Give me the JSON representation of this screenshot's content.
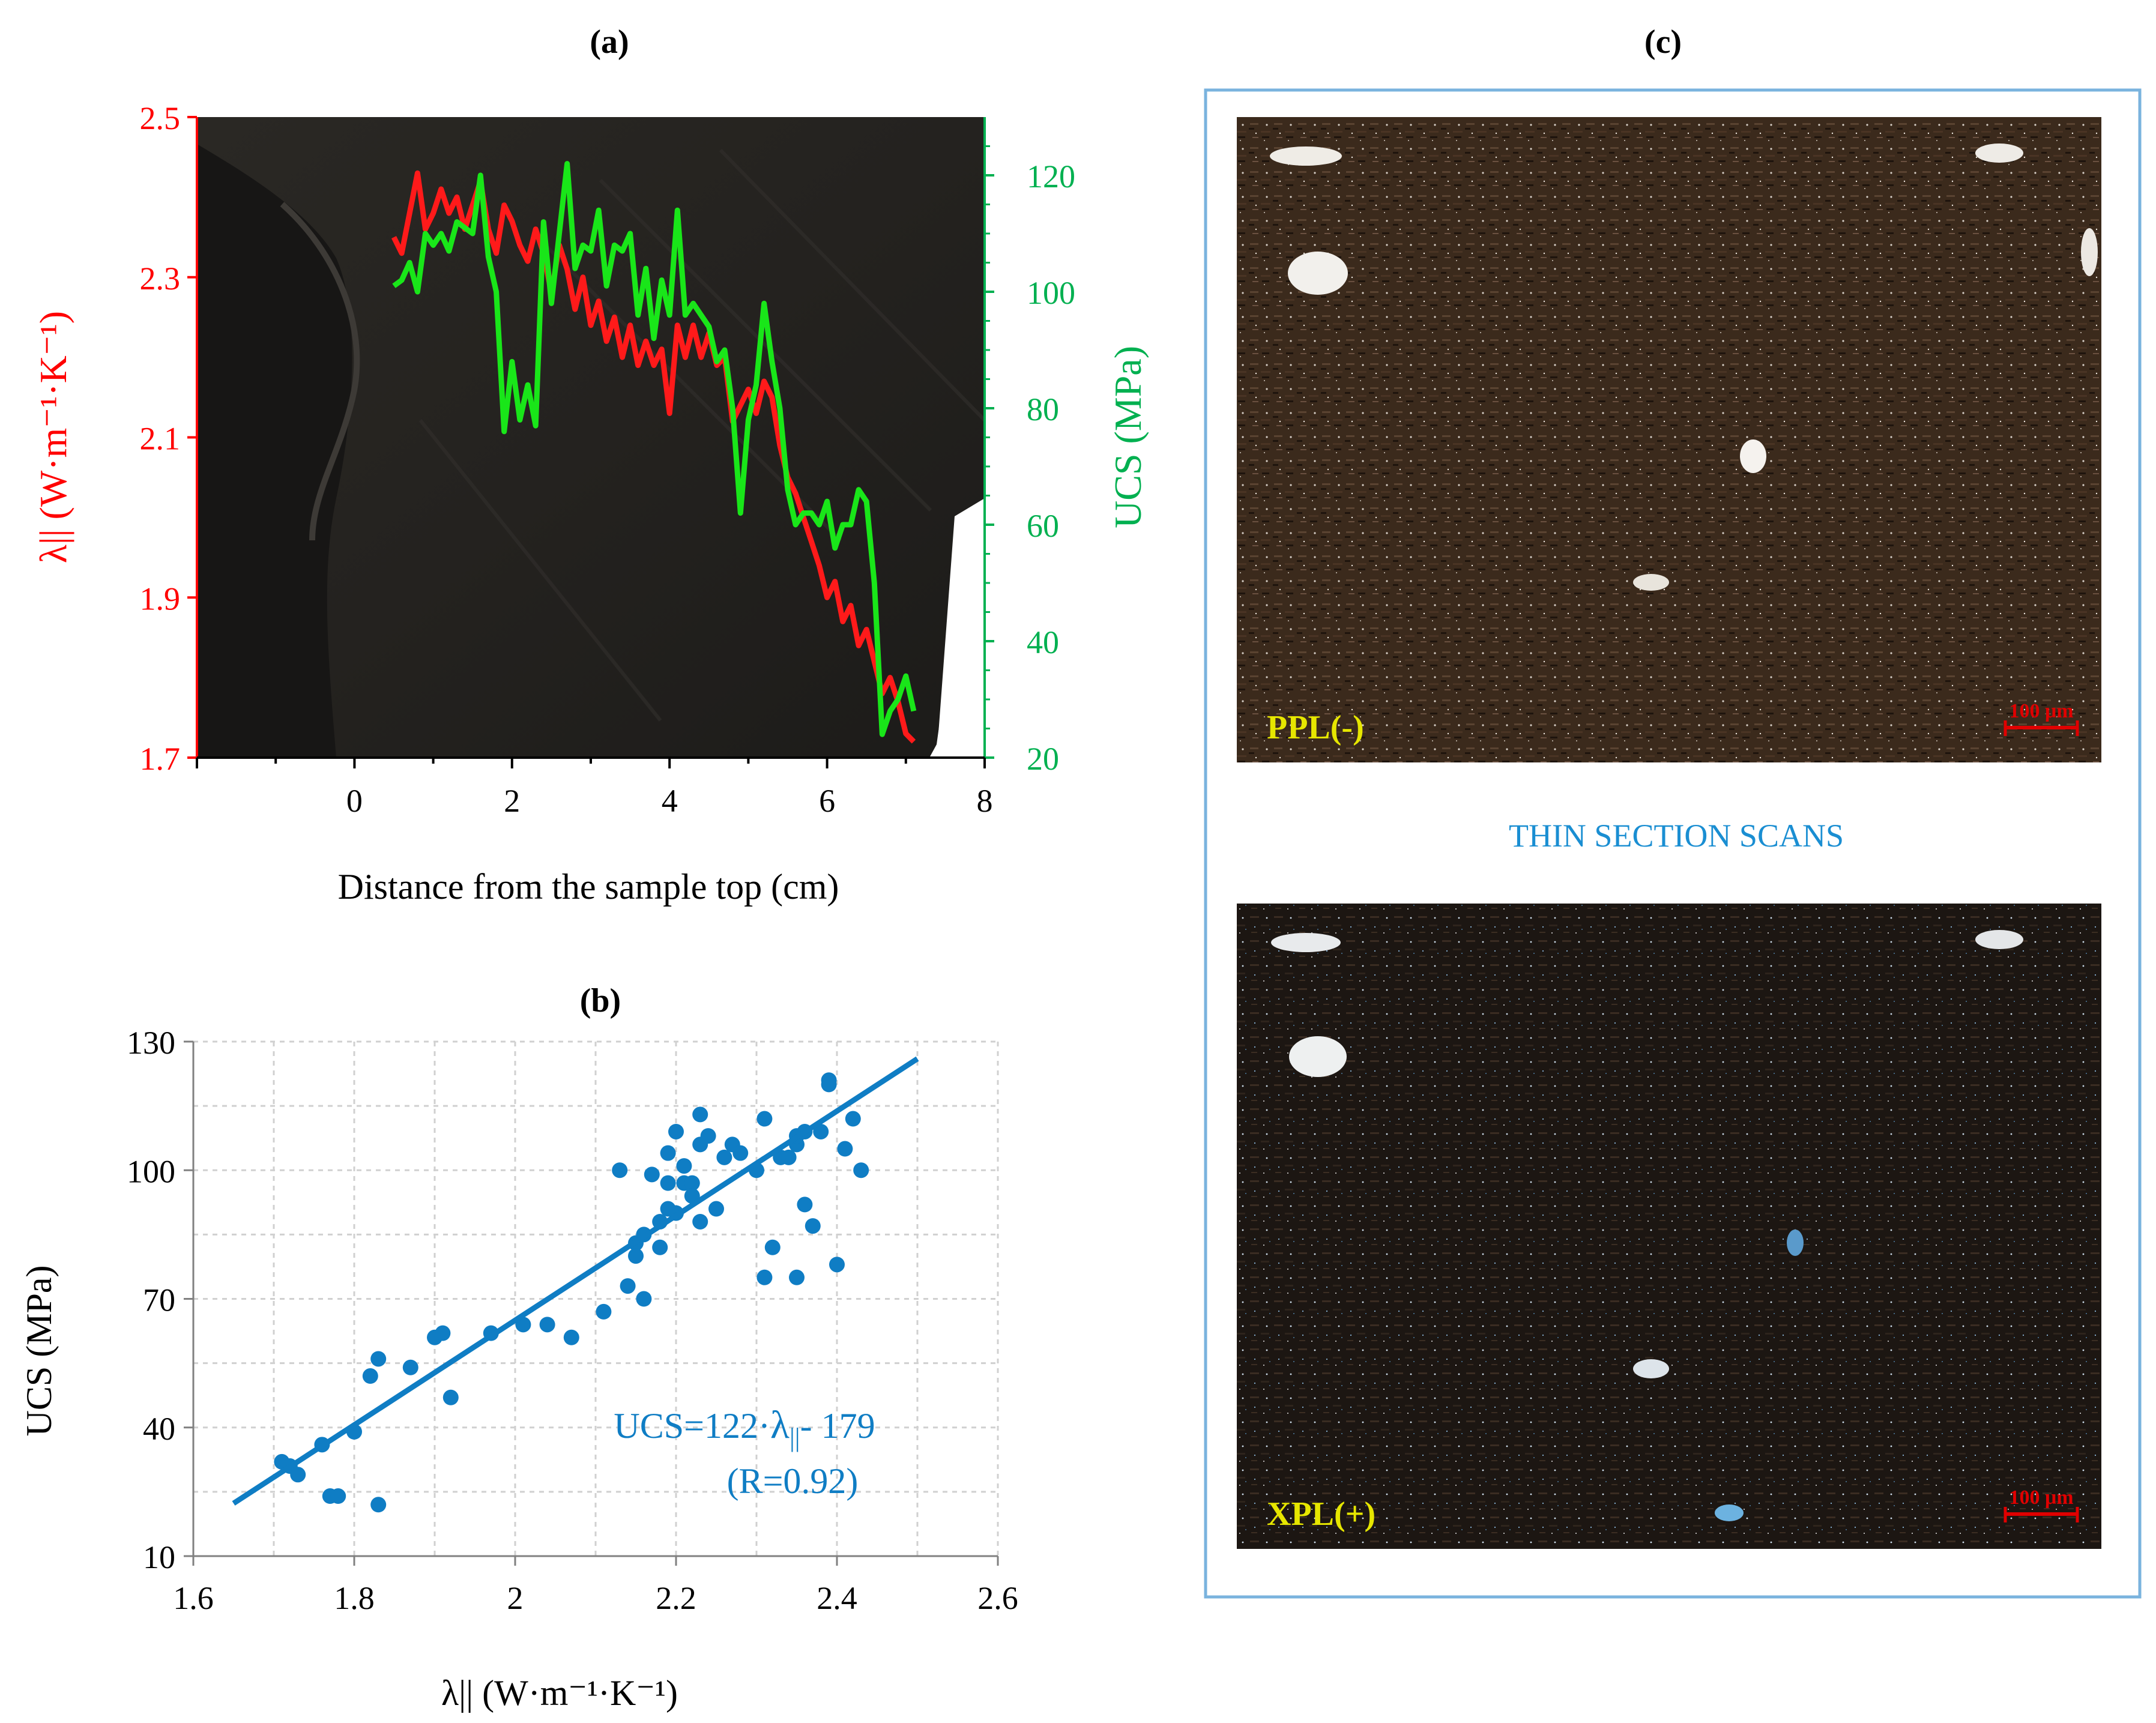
{
  "panel_a": {
    "label": "(a)",
    "chart_data": {
      "type": "line",
      "title": "(a)",
      "xlabel": "Distance from the sample top (cm)",
      "ylabel_left": "λ|| (W·m⁻¹·K⁻¹)",
      "ylabel_right": "UCS (MPa)",
      "xlim": [
        -2,
        8
      ],
      "ylim_left": [
        1.7,
        2.5
      ],
      "ylim_right": [
        20,
        130
      ],
      "x_ticks": [
        "0",
        "2",
        "4",
        "6",
        "8"
      ],
      "x_tick_values": [
        0,
        2,
        4,
        6,
        8
      ],
      "y_left_ticks": [
        "1.7",
        "1.9",
        "2.1",
        "2.3",
        "2.5"
      ],
      "y_left_tick_values": [
        1.7,
        1.9,
        2.1,
        2.3,
        2.5
      ],
      "y_right_ticks": [
        "20",
        "40",
        "60",
        "80",
        "100",
        "120"
      ],
      "y_right_tick_values": [
        20,
        40,
        60,
        80,
        100,
        120
      ],
      "colors": {
        "lambda": "#ff1a1a",
        "ucs": "#19e619",
        "right_axis": "#00b050",
        "left_axis": "#ff0000"
      },
      "series": [
        {
          "name": "λ||",
          "axis": "left",
          "x": [
            0.5,
            0.6,
            0.7,
            0.8,
            0.9,
            1.0,
            1.1,
            1.2,
            1.3,
            1.4,
            1.5,
            1.6,
            1.7,
            1.8,
            1.9,
            2.0,
            2.1,
            2.2,
            2.3,
            2.4,
            2.5,
            2.6,
            2.7,
            2.8,
            2.9,
            3.0,
            3.1,
            3.2,
            3.3,
            3.4,
            3.5,
            3.6,
            3.7,
            3.8,
            3.9,
            4.0,
            4.1,
            4.2,
            4.3,
            4.4,
            4.5,
            4.6,
            4.7,
            4.8,
            4.9,
            5.0,
            5.1,
            5.2,
            5.3,
            5.4,
            5.5,
            5.6,
            5.7,
            5.8,
            5.9,
            6.0,
            6.1,
            6.2,
            6.3,
            6.4,
            6.5,
            6.6,
            6.7,
            6.8,
            6.9,
            7.0,
            7.1
          ],
          "y": [
            2.35,
            2.33,
            2.38,
            2.43,
            2.36,
            2.38,
            2.41,
            2.38,
            2.4,
            2.36,
            2.39,
            2.42,
            2.36,
            2.33,
            2.39,
            2.37,
            2.34,
            2.32,
            2.36,
            2.33,
            2.28,
            2.34,
            2.31,
            2.26,
            2.3,
            2.24,
            2.27,
            2.22,
            2.25,
            2.2,
            2.24,
            2.19,
            2.22,
            2.19,
            2.21,
            2.13,
            2.24,
            2.2,
            2.24,
            2.2,
            2.23,
            2.19,
            2.2,
            2.12,
            2.14,
            2.16,
            2.13,
            2.17,
            2.15,
            2.09,
            2.05,
            2.03,
            2.0,
            1.97,
            1.94,
            1.9,
            1.92,
            1.87,
            1.89,
            1.84,
            1.86,
            1.82,
            1.78,
            1.8,
            1.77,
            1.73,
            1.72
          ]
        },
        {
          "name": "UCS",
          "axis": "right",
          "x": [
            0.5,
            0.6,
            0.7,
            0.8,
            0.9,
            1.0,
            1.1,
            1.2,
            1.3,
            1.4,
            1.5,
            1.6,
            1.7,
            1.8,
            1.9,
            2.0,
            2.1,
            2.2,
            2.3,
            2.4,
            2.5,
            2.6,
            2.7,
            2.8,
            2.9,
            3.0,
            3.1,
            3.2,
            3.3,
            3.4,
            3.5,
            3.6,
            3.7,
            3.8,
            3.9,
            4.0,
            4.1,
            4.2,
            4.3,
            4.4,
            4.5,
            4.6,
            4.7,
            4.8,
            4.9,
            5.0,
            5.1,
            5.2,
            5.3,
            5.4,
            5.5,
            5.6,
            5.7,
            5.8,
            5.9,
            6.0,
            6.1,
            6.2,
            6.3,
            6.4,
            6.5,
            6.6,
            6.7,
            6.8,
            6.9,
            7.0,
            7.1
          ],
          "y": [
            101,
            102,
            105,
            100,
            110,
            108,
            110,
            107,
            112,
            111,
            110,
            120,
            106,
            100,
            76,
            88,
            78,
            84,
            77,
            112,
            98,
            110,
            122,
            104,
            108,
            107,
            114,
            101,
            108,
            107,
            110,
            96,
            104,
            92,
            102,
            96,
            114,
            96,
            98,
            96,
            94,
            88,
            90,
            80,
            62,
            78,
            84,
            98,
            88,
            80,
            66,
            60,
            62,
            62,
            60,
            64,
            56,
            60,
            60,
            66,
            64,
            50,
            24,
            28,
            30,
            34,
            28
          ]
        }
      ]
    }
  },
  "panel_b": {
    "label": "(b)",
    "equation_prefix": "UCS=122·",
    "equation_symbol": "λ",
    "equation_subscript": "||",
    "equation_suffix": "- 179",
    "r_value": "(R=0.92)",
    "chart_data": {
      "type": "scatter",
      "title": "(b)",
      "xlabel": "λ|| (W·m⁻¹·K⁻¹)",
      "ylabel": "UCS (MPa)",
      "xlim": [
        1.6,
        2.6
      ],
      "ylim": [
        10,
        130
      ],
      "x_ticks": [
        "1.6",
        "1.8",
        "2",
        "2.2",
        "2.4",
        "2.6"
      ],
      "x_tick_values": [
        1.6,
        1.8,
        2.0,
        2.2,
        2.4,
        2.6
      ],
      "y_ticks": [
        "10",
        "40",
        "70",
        "100",
        "130"
      ],
      "y_tick_values": [
        10,
        40,
        70,
        100,
        130
      ],
      "grid": true,
      "color": "#0f7dc4",
      "fit_line": {
        "slope": 122,
        "intercept": -179,
        "x_range": [
          1.65,
          2.5
        ]
      },
      "points": {
        "x": [
          1.71,
          1.72,
          1.73,
          1.76,
          1.77,
          1.78,
          1.8,
          1.82,
          1.83,
          1.83,
          1.87,
          1.9,
          1.91,
          1.92,
          1.97,
          2.01,
          2.04,
          2.07,
          2.11,
          2.13,
          2.14,
          2.15,
          2.15,
          2.16,
          2.16,
          2.17,
          2.18,
          2.18,
          2.19,
          2.19,
          2.19,
          2.2,
          2.2,
          2.21,
          2.21,
          2.22,
          2.22,
          2.23,
          2.23,
          2.23,
          2.24,
          2.25,
          2.26,
          2.27,
          2.28,
          2.3,
          2.31,
          2.31,
          2.32,
          2.33,
          2.34,
          2.35,
          2.35,
          2.35,
          2.36,
          2.36,
          2.37,
          2.38,
          2.39,
          2.39,
          2.4,
          2.41,
          2.42,
          2.43
        ],
        "y": [
          32,
          31,
          29,
          36,
          24,
          24,
          39,
          52,
          22,
          56,
          54,
          61,
          62,
          47,
          62,
          64,
          64,
          61,
          67,
          100,
          73,
          83,
          80,
          70,
          85,
          99,
          82,
          88,
          104,
          97,
          91,
          109,
          90,
          97,
          101,
          97,
          94,
          106,
          113,
          88,
          108,
          91,
          103,
          106,
          104,
          100,
          112,
          75,
          82,
          103,
          103,
          106,
          108,
          75,
          92,
          109,
          87,
          109,
          121,
          120,
          78,
          105,
          112,
          100
        ]
      }
    }
  },
  "panel_c": {
    "label": "(c)",
    "center_caption": "THIN SECTION SCANS",
    "top_image_label": "PPL(-)",
    "bottom_image_label": "XPL(+)",
    "scale_bar": "100 μm",
    "colors": {
      "frame": "#7ab3de",
      "caption": "#1a8ed2",
      "image_label": "#e6e600",
      "scale": "#e00000"
    }
  }
}
